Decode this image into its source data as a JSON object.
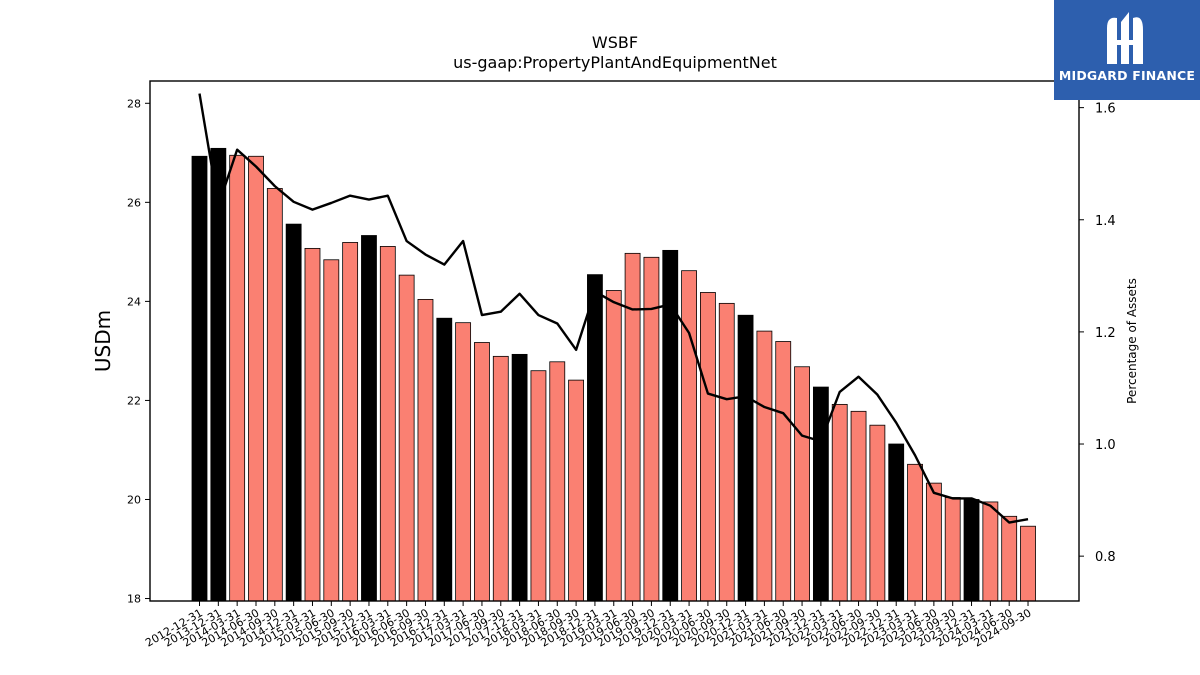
{
  "chart_data": {
    "type": "bar",
    "title": "WSBF",
    "subtitle": "us-gaap:PropertyPlantAndEquipmentNet",
    "ylabel": "USDm",
    "y2label": "Percentage of Assets",
    "ylim": [
      17.95,
      28.45
    ],
    "y2lim": [
      0.72,
      1.6475
    ],
    "yticks": [
      18,
      20,
      22,
      24,
      26,
      28
    ],
    "y2ticks": [
      "0.8",
      "1.0",
      "1.2",
      "1.4",
      "1.6"
    ],
    "categories": [
      "2012-12-31",
      "2013-12-31",
      "2014-03-31",
      "2014-06-30",
      "2014-09-30",
      "2014-12-31",
      "2015-03-31",
      "2015-06-30",
      "2015-09-30",
      "2015-12-31",
      "2016-03-31",
      "2016-06-30",
      "2016-09-30",
      "2016-12-31",
      "2017-03-31",
      "2017-06-30",
      "2017-09-30",
      "2017-12-31",
      "2018-03-31",
      "2018-06-30",
      "2018-09-30",
      "2018-12-31",
      "2019-03-31",
      "2019-06-30",
      "2019-09-30",
      "2019-12-31",
      "2020-03-31",
      "2020-06-30",
      "2020-09-30",
      "2020-12-31",
      "2021-03-31",
      "2021-06-30",
      "2021-09-30",
      "2021-12-31",
      "2022-03-31",
      "2022-06-30",
      "2022-09-30",
      "2022-12-31",
      "2023-03-31",
      "2023-06-30",
      "2023-09-30",
      "2023-12-31",
      "2024-03-31",
      "2024-06-30",
      "2024-09-30"
    ],
    "series": [
      {
        "type": "bar",
        "values": [
          26.93,
          27.09,
          26.95,
          26.93,
          26.28,
          25.56,
          25.07,
          24.84,
          25.19,
          25.33,
          25.11,
          24.53,
          24.04,
          23.66,
          23.57,
          23.17,
          22.89,
          22.93,
          22.6,
          22.78,
          22.41,
          24.54,
          24.22,
          24.97,
          24.89,
          25.03,
          24.62,
          24.18,
          23.96,
          23.72,
          23.4,
          23.19,
          22.68,
          22.27,
          21.92,
          21.78,
          21.5,
          21.12,
          20.71,
          20.33,
          20.04,
          20.0,
          19.95,
          19.66,
          19.46
        ],
        "annual_color": "#000000",
        "quarter_color": "#fa8072"
      },
      {
        "type": "line",
        "values": [
          1.625,
          1.425,
          1.525,
          1.495,
          1.46,
          1.432,
          1.418,
          1.43,
          1.443,
          1.436,
          1.443,
          1.362,
          1.338,
          1.32,
          1.362,
          1.23,
          1.236,
          1.268,
          1.23,
          1.215,
          1.168,
          1.272,
          1.253,
          1.24,
          1.241,
          1.249,
          1.198,
          1.09,
          1.08,
          1.085,
          1.066,
          1.055,
          1.015,
          1.005,
          1.093,
          1.12,
          1.088,
          1.038,
          0.98,
          0.913,
          0.903,
          0.903,
          0.89,
          0.86,
          0.866
        ],
        "color": "#000000"
      }
    ]
  },
  "logo": {
    "text": "MIDGARD FINANCE",
    "background": "#2d5fae"
  }
}
